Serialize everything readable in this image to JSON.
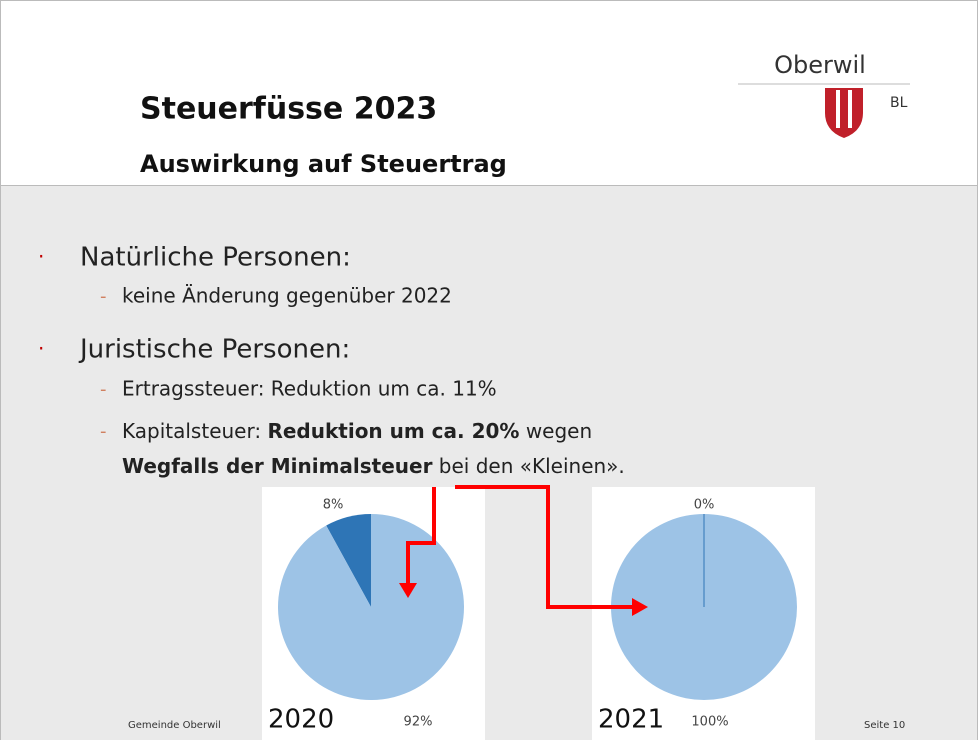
{
  "header": {
    "title": "Steuerfüsse 2023",
    "subtitle": "Auswirkung auf Steuertrag",
    "logo": {
      "name": "Oberwil",
      "region": "BL"
    }
  },
  "bullets": [
    {
      "text": "Natürliche Personen:",
      "items": [
        [
          "keine Änderung gegenüber 2022"
        ]
      ]
    },
    {
      "text": "Juristische Personen:",
      "items": [
        [
          "Ertragssteuer: Reduktion um ca. 11%"
        ],
        [
          "Kapitalsteuer: ",
          "Reduktion um ca. 20%",
          " wegen",
          "Wegfalls der Minimalsteuer",
          " bei den «Kleinen»."
        ]
      ]
    }
  ],
  "chart_data": [
    {
      "type": "pie",
      "title": "2020",
      "values": [
        8,
        92
      ],
      "value_labels": [
        "8%",
        "92%"
      ],
      "colors": [
        "#2e75b6",
        "#9dc3e6"
      ]
    },
    {
      "type": "pie",
      "title": "2021",
      "values": [
        0,
        100
      ],
      "value_labels": [
        "0%",
        "100%"
      ],
      "colors": [
        "#2e75b6",
        "#9dc3e6"
      ]
    }
  ],
  "footer": {
    "left": "Gemeinde Oberwil",
    "right": "Seite 10"
  }
}
